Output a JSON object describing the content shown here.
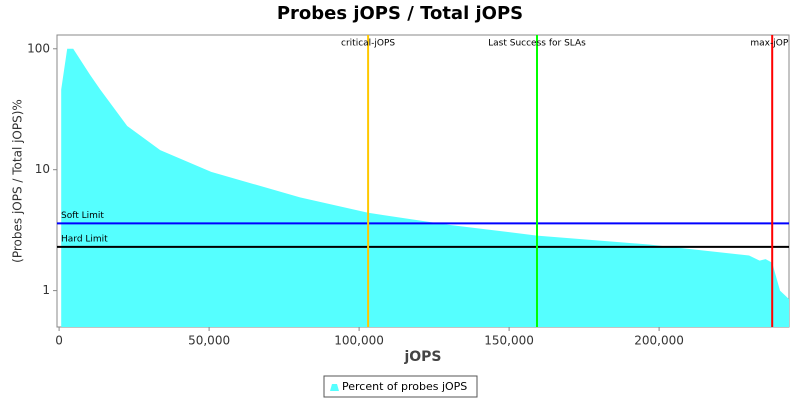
{
  "chart_data": {
    "type": "area",
    "title": "Probes jOPS / Total jOPS",
    "x_label": "jOPS",
    "y_label": "(Probes jOPS / Total jOPS)%",
    "x": [
      700,
      2700,
      4700,
      10300,
      13700,
      22700,
      33700,
      50700,
      80300,
      103000,
      130000,
      159300,
      197000,
      230000,
      233500,
      235500,
      237700,
      240300,
      243300
    ],
    "series": [
      {
        "name": "Percent of probes jOPS",
        "color": "#55ffff",
        "values": [
          46,
          100,
          100,
          61,
          46,
          23,
          14.5,
          9.6,
          5.9,
          4.4,
          3.5,
          2.85,
          2.4,
          1.95,
          1.77,
          1.82,
          1.7,
          1.0,
          0.85
        ]
      }
    ],
    "xlim": [
      -700,
      243300
    ],
    "xticks": [
      0,
      {
        "value": 50000,
        "label": "50,000"
      },
      {
        "value": 100000,
        "label": "100,000"
      },
      {
        "value": 150000,
        "label": "150,000"
      },
      {
        "value": 200000,
        "label": "200,000"
      }
    ],
    "ylim": [
      0.5,
      130
    ],
    "yticks": [
      1,
      10,
      100
    ],
    "y_scale": "log",
    "vertical_markers": [
      {
        "label": "critical-jOPS",
        "value": 103000,
        "color": "#ffc800"
      },
      {
        "label": "Last Success for SLAs",
        "value": 159300,
        "color": "#00ff00"
      },
      {
        "label": "max-jOPS",
        "value": 237700,
        "color": "#ff0000"
      }
    ],
    "horizontal_markers": [
      {
        "label": "Soft Limit",
        "value": 3.6,
        "color": "#0000ff"
      },
      {
        "label": "Hard Limit",
        "value": 2.3,
        "color": "#000000"
      }
    ]
  }
}
